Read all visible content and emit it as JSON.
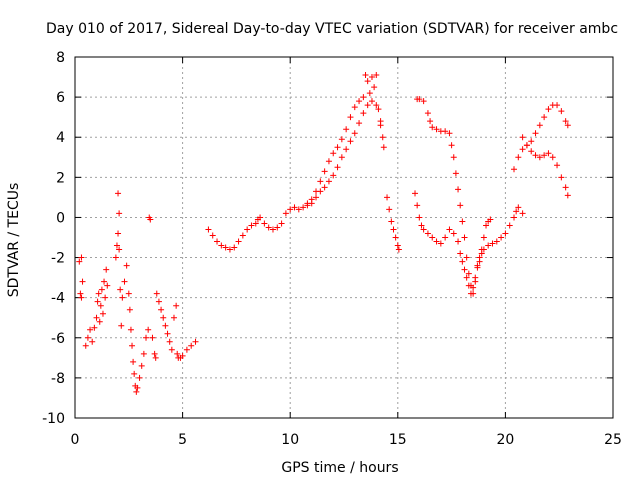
{
  "chart_data": {
    "type": "scatter",
    "title": "Day 010 of 2017, Sidereal Day-to-day VTEC variation (SDTVAR) for receiver ambc",
    "xlabel": "GPS time / hours",
    "ylabel": "SDTVAR / TECUs",
    "xlim": [
      0,
      25
    ],
    "ylim": [
      -10,
      8
    ],
    "xticks": [
      0,
      5,
      10,
      15,
      20,
      25
    ],
    "yticks": [
      -10,
      -8,
      -6,
      -4,
      -2,
      0,
      2,
      4,
      6,
      8
    ],
    "grid": true,
    "marker": "+",
    "color": "#ff0000",
    "series": [
      {
        "name": "SDTVAR",
        "points": [
          [
            0.2,
            -2.2
          ],
          [
            0.25,
            -3.8
          ],
          [
            0.3,
            -4.0
          ],
          [
            0.3,
            -2.0
          ],
          [
            0.35,
            -3.2
          ],
          [
            0.5,
            -6.4
          ],
          [
            0.6,
            -6.0
          ],
          [
            0.7,
            -5.6
          ],
          [
            0.8,
            -6.2
          ],
          [
            0.9,
            -5.5
          ],
          [
            1.0,
            -5.0
          ],
          [
            1.05,
            -4.2
          ],
          [
            1.1,
            -3.8
          ],
          [
            1.15,
            -5.2
          ],
          [
            1.2,
            -4.4
          ],
          [
            1.25,
            -3.6
          ],
          [
            1.3,
            -4.8
          ],
          [
            1.35,
            -3.2
          ],
          [
            1.4,
            -4.0
          ],
          [
            1.45,
            -2.6
          ],
          [
            1.5,
            -3.4
          ],
          [
            1.9,
            -2.0
          ],
          [
            1.95,
            -1.4
          ],
          [
            2.0,
            1.2
          ],
          [
            2.0,
            -0.8
          ],
          [
            2.05,
            0.2
          ],
          [
            2.05,
            -1.6
          ],
          [
            2.1,
            -3.6
          ],
          [
            2.15,
            -5.4
          ],
          [
            2.2,
            -4.0
          ],
          [
            2.3,
            -3.2
          ],
          [
            2.4,
            -2.4
          ],
          [
            2.5,
            -3.8
          ],
          [
            2.55,
            -4.6
          ],
          [
            2.6,
            -5.6
          ],
          [
            2.65,
            -6.4
          ],
          [
            2.7,
            -7.2
          ],
          [
            2.75,
            -7.8
          ],
          [
            2.8,
            -8.4
          ],
          [
            2.85,
            -8.7
          ],
          [
            2.9,
            -8.5
          ],
          [
            3.0,
            -8.0
          ],
          [
            3.1,
            -7.4
          ],
          [
            3.2,
            -6.8
          ],
          [
            3.3,
            -6.0
          ],
          [
            3.4,
            -5.6
          ],
          [
            3.45,
            0.0
          ],
          [
            3.5,
            -0.1
          ],
          [
            3.6,
            -6.0
          ],
          [
            3.7,
            -6.8
          ],
          [
            3.75,
            -7.0
          ],
          [
            3.8,
            -3.8
          ],
          [
            3.9,
            -4.2
          ],
          [
            4.0,
            -4.6
          ],
          [
            4.1,
            -5.0
          ],
          [
            4.2,
            -5.4
          ],
          [
            4.3,
            -5.8
          ],
          [
            4.4,
            -6.2
          ],
          [
            4.5,
            -6.6
          ],
          [
            4.6,
            -5.0
          ],
          [
            4.7,
            -4.4
          ],
          [
            4.75,
            -6.8
          ],
          [
            4.8,
            -7.0
          ],
          [
            4.9,
            -7.0
          ],
          [
            5.0,
            -6.9
          ],
          [
            5.2,
            -6.6
          ],
          [
            5.4,
            -6.4
          ],
          [
            5.6,
            -6.2
          ],
          [
            6.2,
            -0.6
          ],
          [
            6.4,
            -0.9
          ],
          [
            6.6,
            -1.2
          ],
          [
            6.8,
            -1.4
          ],
          [
            7.0,
            -1.5
          ],
          [
            7.2,
            -1.6
          ],
          [
            7.4,
            -1.5
          ],
          [
            7.6,
            -1.2
          ],
          [
            7.8,
            -0.9
          ],
          [
            8.0,
            -0.6
          ],
          [
            8.2,
            -0.4
          ],
          [
            8.4,
            -0.3
          ],
          [
            8.5,
            -0.1
          ],
          [
            8.6,
            0.0
          ],
          [
            8.8,
            -0.3
          ],
          [
            9.0,
            -0.5
          ],
          [
            9.2,
            -0.6
          ],
          [
            9.4,
            -0.5
          ],
          [
            9.6,
            -0.3
          ],
          [
            9.8,
            0.2
          ],
          [
            10.0,
            0.4
          ],
          [
            10.2,
            0.5
          ],
          [
            10.4,
            0.4
          ],
          [
            10.6,
            0.5
          ],
          [
            10.8,
            0.7
          ],
          [
            11.0,
            0.9
          ],
          [
            11.2,
            1.3
          ],
          [
            11.4,
            1.8
          ],
          [
            11.6,
            2.3
          ],
          [
            11.8,
            2.8
          ],
          [
            12.0,
            3.2
          ],
          [
            12.2,
            3.5
          ],
          [
            12.4,
            3.9
          ],
          [
            12.6,
            4.4
          ],
          [
            12.8,
            5.0
          ],
          [
            13.0,
            5.5
          ],
          [
            13.2,
            5.8
          ],
          [
            13.4,
            6.0
          ],
          [
            13.5,
            7.1
          ],
          [
            13.6,
            6.8
          ],
          [
            13.7,
            6.2
          ],
          [
            13.8,
            7.0
          ],
          [
            13.9,
            6.5
          ],
          [
            14.0,
            7.1
          ],
          [
            14.1,
            5.4
          ],
          [
            14.2,
            4.8
          ],
          [
            14.3,
            4.0
          ],
          [
            14.35,
            3.5
          ],
          [
            10.8,
            0.6
          ],
          [
            11.0,
            0.7
          ],
          [
            11.2,
            1.0
          ],
          [
            11.4,
            1.3
          ],
          [
            11.6,
            1.5
          ],
          [
            11.8,
            1.8
          ],
          [
            12.0,
            2.1
          ],
          [
            12.2,
            2.5
          ],
          [
            12.4,
            3.0
          ],
          [
            12.6,
            3.4
          ],
          [
            12.8,
            3.8
          ],
          [
            13.0,
            4.2
          ],
          [
            13.2,
            4.7
          ],
          [
            13.4,
            5.2
          ],
          [
            13.6,
            5.6
          ],
          [
            13.8,
            5.8
          ],
          [
            14.0,
            5.6
          ],
          [
            14.2,
            4.6
          ],
          [
            14.5,
            1.0
          ],
          [
            14.6,
            0.4
          ],
          [
            14.7,
            -0.2
          ],
          [
            14.8,
            -0.6
          ],
          [
            14.9,
            -1.0
          ],
          [
            15.0,
            -1.4
          ],
          [
            15.05,
            -1.6
          ],
          [
            15.8,
            1.2
          ],
          [
            15.9,
            0.6
          ],
          [
            16.0,
            0.0
          ],
          [
            16.1,
            -0.4
          ],
          [
            16.2,
            -0.6
          ],
          [
            16.4,
            -0.8
          ],
          [
            16.6,
            -1.0
          ],
          [
            16.8,
            -1.2
          ],
          [
            17.0,
            -1.3
          ],
          [
            17.2,
            -1.0
          ],
          [
            17.4,
            -0.6
          ],
          [
            17.6,
            -0.8
          ],
          [
            17.8,
            -1.2
          ],
          [
            17.9,
            -1.8
          ],
          [
            18.0,
            -2.2
          ],
          [
            18.1,
            -2.6
          ],
          [
            18.2,
            -3.0
          ],
          [
            18.3,
            -3.4
          ],
          [
            18.4,
            -3.8
          ],
          [
            18.5,
            -3.5
          ],
          [
            18.6,
            -3.0
          ],
          [
            18.7,
            -2.5
          ],
          [
            18.8,
            -2.2
          ],
          [
            18.9,
            -1.8
          ],
          [
            19.0,
            -1.6
          ],
          [
            19.2,
            -1.4
          ],
          [
            19.4,
            -1.3
          ],
          [
            19.6,
            -1.2
          ],
          [
            19.8,
            -1.0
          ],
          [
            20.0,
            -0.8
          ],
          [
            20.2,
            -0.4
          ],
          [
            20.4,
            0.0
          ],
          [
            20.5,
            0.3
          ],
          [
            20.6,
            0.5
          ],
          [
            20.8,
            0.2
          ],
          [
            15.9,
            5.9
          ],
          [
            16.0,
            5.9
          ],
          [
            16.2,
            5.8
          ],
          [
            16.4,
            5.2
          ],
          [
            16.5,
            4.8
          ],
          [
            16.6,
            4.5
          ],
          [
            16.8,
            4.4
          ],
          [
            17.0,
            4.3
          ],
          [
            17.2,
            4.3
          ],
          [
            17.4,
            4.2
          ],
          [
            17.5,
            3.6
          ],
          [
            17.6,
            3.0
          ],
          [
            17.7,
            2.2
          ],
          [
            17.8,
            1.4
          ],
          [
            17.9,
            0.6
          ],
          [
            18.0,
            -0.2
          ],
          [
            18.1,
            -1.0
          ],
          [
            18.2,
            -2.0
          ],
          [
            18.3,
            -2.8
          ],
          [
            18.4,
            -3.4
          ],
          [
            18.5,
            -3.8
          ],
          [
            18.6,
            -3.2
          ],
          [
            18.7,
            -2.4
          ],
          [
            18.8,
            -2.0
          ],
          [
            18.9,
            -1.6
          ],
          [
            19.0,
            -1.0
          ],
          [
            19.1,
            -0.4
          ],
          [
            19.2,
            -0.2
          ],
          [
            19.3,
            -0.1
          ],
          [
            20.4,
            2.4
          ],
          [
            20.6,
            3.0
          ],
          [
            20.8,
            3.4
          ],
          [
            21.0,
            3.6
          ],
          [
            21.2,
            3.8
          ],
          [
            21.4,
            4.2
          ],
          [
            21.6,
            4.6
          ],
          [
            21.8,
            5.0
          ],
          [
            22.0,
            5.4
          ],
          [
            22.2,
            5.6
          ],
          [
            22.4,
            5.6
          ],
          [
            22.6,
            5.3
          ],
          [
            22.8,
            4.8
          ],
          [
            22.9,
            4.6
          ],
          [
            20.8,
            4.0
          ],
          [
            21.0,
            3.6
          ],
          [
            21.2,
            3.3
          ],
          [
            21.4,
            3.1
          ],
          [
            21.6,
            3.0
          ],
          [
            21.8,
            3.1
          ],
          [
            22.0,
            3.2
          ],
          [
            22.2,
            3.0
          ],
          [
            22.4,
            2.6
          ],
          [
            22.6,
            2.0
          ],
          [
            22.8,
            1.5
          ],
          [
            22.9,
            1.1
          ]
        ]
      }
    ]
  }
}
